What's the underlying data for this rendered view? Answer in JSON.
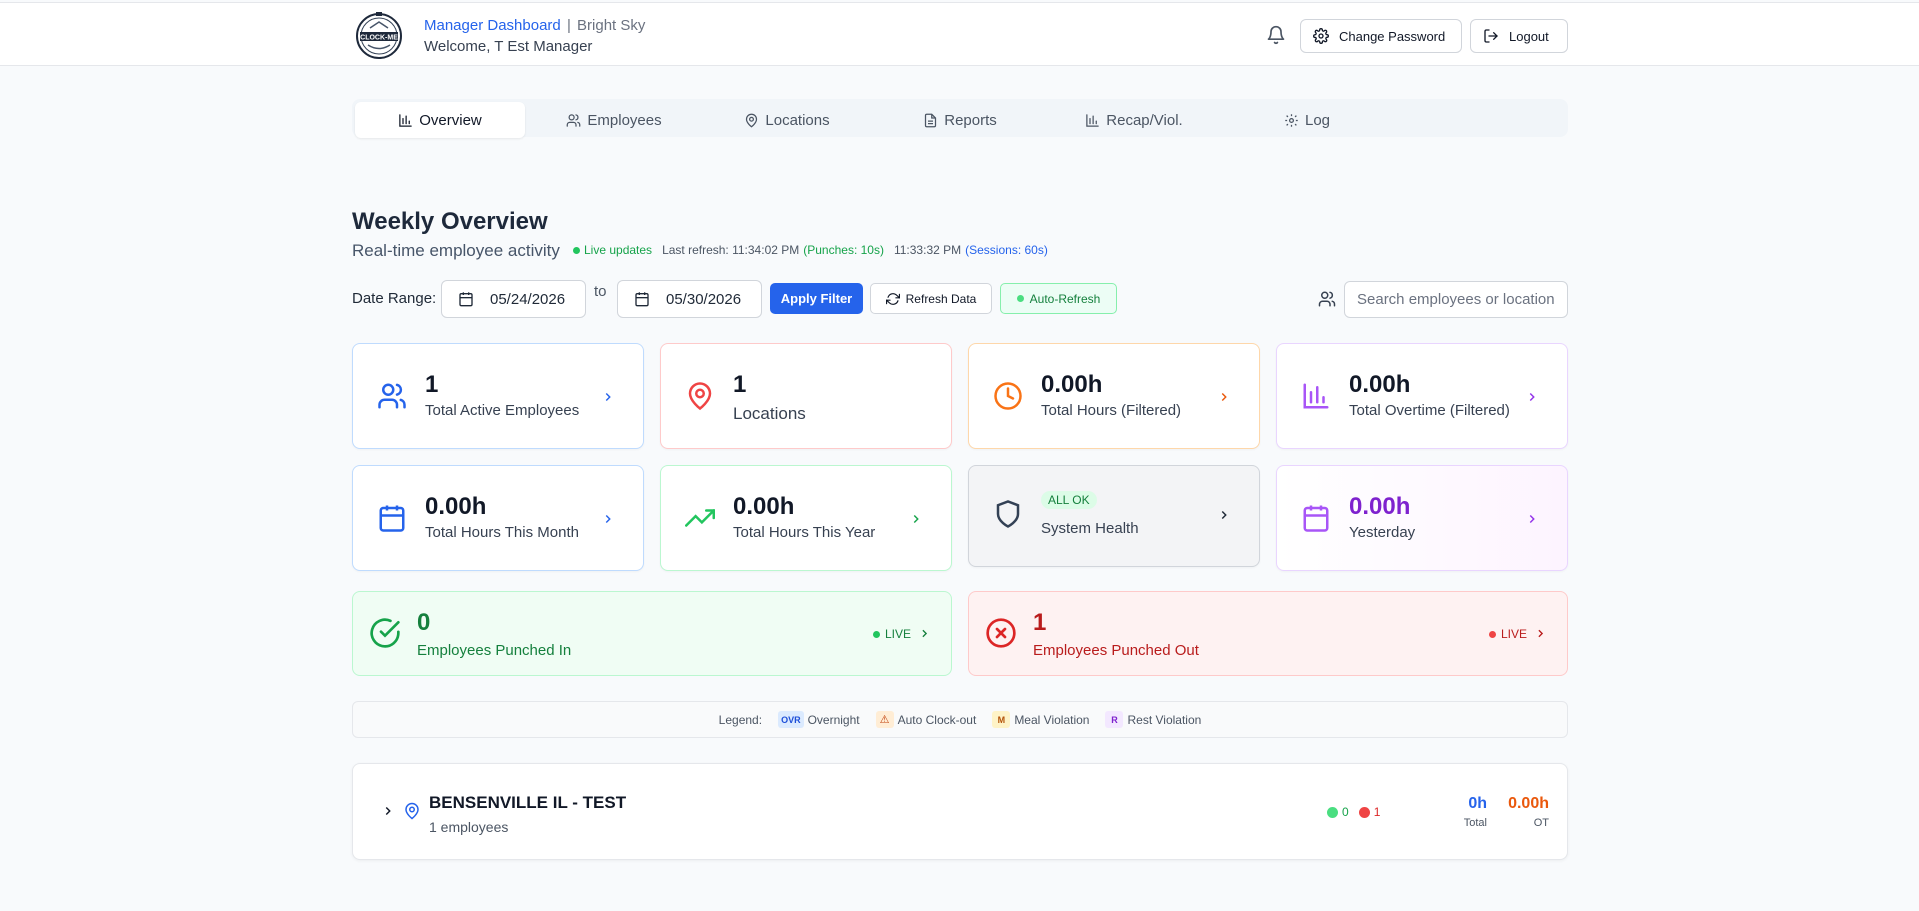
{
  "header": {
    "dashboard": "Manager Dashboard",
    "separator": "|",
    "org": "Bright Sky",
    "welcome": "Welcome, T Est Manager",
    "logo_text": "CLOCK-ME",
    "change_password": "Change Password",
    "logout": "Logout"
  },
  "tabs": [
    {
      "label": "Overview",
      "icon": "bar-chart-icon",
      "active": true
    },
    {
      "label": "Employees",
      "icon": "users-icon"
    },
    {
      "label": "Locations",
      "icon": "map-pin-icon"
    },
    {
      "label": "Reports",
      "icon": "file-text-icon"
    },
    {
      "label": "Recap/Viol.",
      "icon": "bar-chart-icon"
    },
    {
      "label": "Log",
      "icon": "gear-icon"
    }
  ],
  "overview": {
    "title": "Weekly Overview",
    "subtitle": "Real-time employee activity",
    "live": "Live updates",
    "last_refresh": "Last refresh: 11:34:02 PM",
    "punches": "(Punches: 10s)",
    "sessions_time": "11:33:32 PM",
    "sessions": "(Sessions: 60s)"
  },
  "filter": {
    "label": "Date Range:",
    "start": "05/24/2026",
    "to": "to",
    "end": "05/30/2026",
    "apply": "Apply Filter",
    "refresh": "Refresh Data",
    "auto": "Auto-Refresh",
    "search_placeholder": "Search employees or locations..."
  },
  "cards": {
    "active_employees": {
      "value": "1",
      "label": "Total Active Employees"
    },
    "locations": {
      "value": "1",
      "label": "Locations"
    },
    "total_hours": {
      "value": "0.00h",
      "label": "Total Hours (Filtered)"
    },
    "total_overtime": {
      "value": "0.00h",
      "label": "Total Overtime (Filtered)"
    },
    "month": {
      "value": "0.00h",
      "label": "Total Hours This Month"
    },
    "year": {
      "value": "0.00h",
      "label": "Total Hours This Year"
    },
    "system": {
      "badge": "ALL OK",
      "label": "System Health"
    },
    "yesterday": {
      "value": "0.00h",
      "label": "Yesterday"
    }
  },
  "punched_in": {
    "value": "0",
    "label": "Employees Punched In",
    "live": "LIVE"
  },
  "punched_out": {
    "value": "1",
    "label": "Employees Punched Out",
    "live": "LIVE"
  },
  "legend": {
    "label": "Legend:",
    "items": [
      {
        "badge": "OVR",
        "label": "Overnight"
      },
      {
        "badge": "⚠",
        "label": "Auto Clock-out"
      },
      {
        "badge": "M",
        "label": "Meal Violation"
      },
      {
        "badge": "R",
        "label": "Rest Violation"
      }
    ]
  },
  "location_row": {
    "name": "BENSENVILLE IL - TEST",
    "employees": "1 employees",
    "in_count": "0",
    "out_count": "1",
    "total": "0h",
    "total_label": "Total",
    "ot": "0.00h",
    "ot_label": "OT"
  },
  "colors": {
    "primary": "#2563eb",
    "green": "#16a34a",
    "red": "#dc2626",
    "orange": "#ea580c",
    "purple": "#9333ea"
  }
}
